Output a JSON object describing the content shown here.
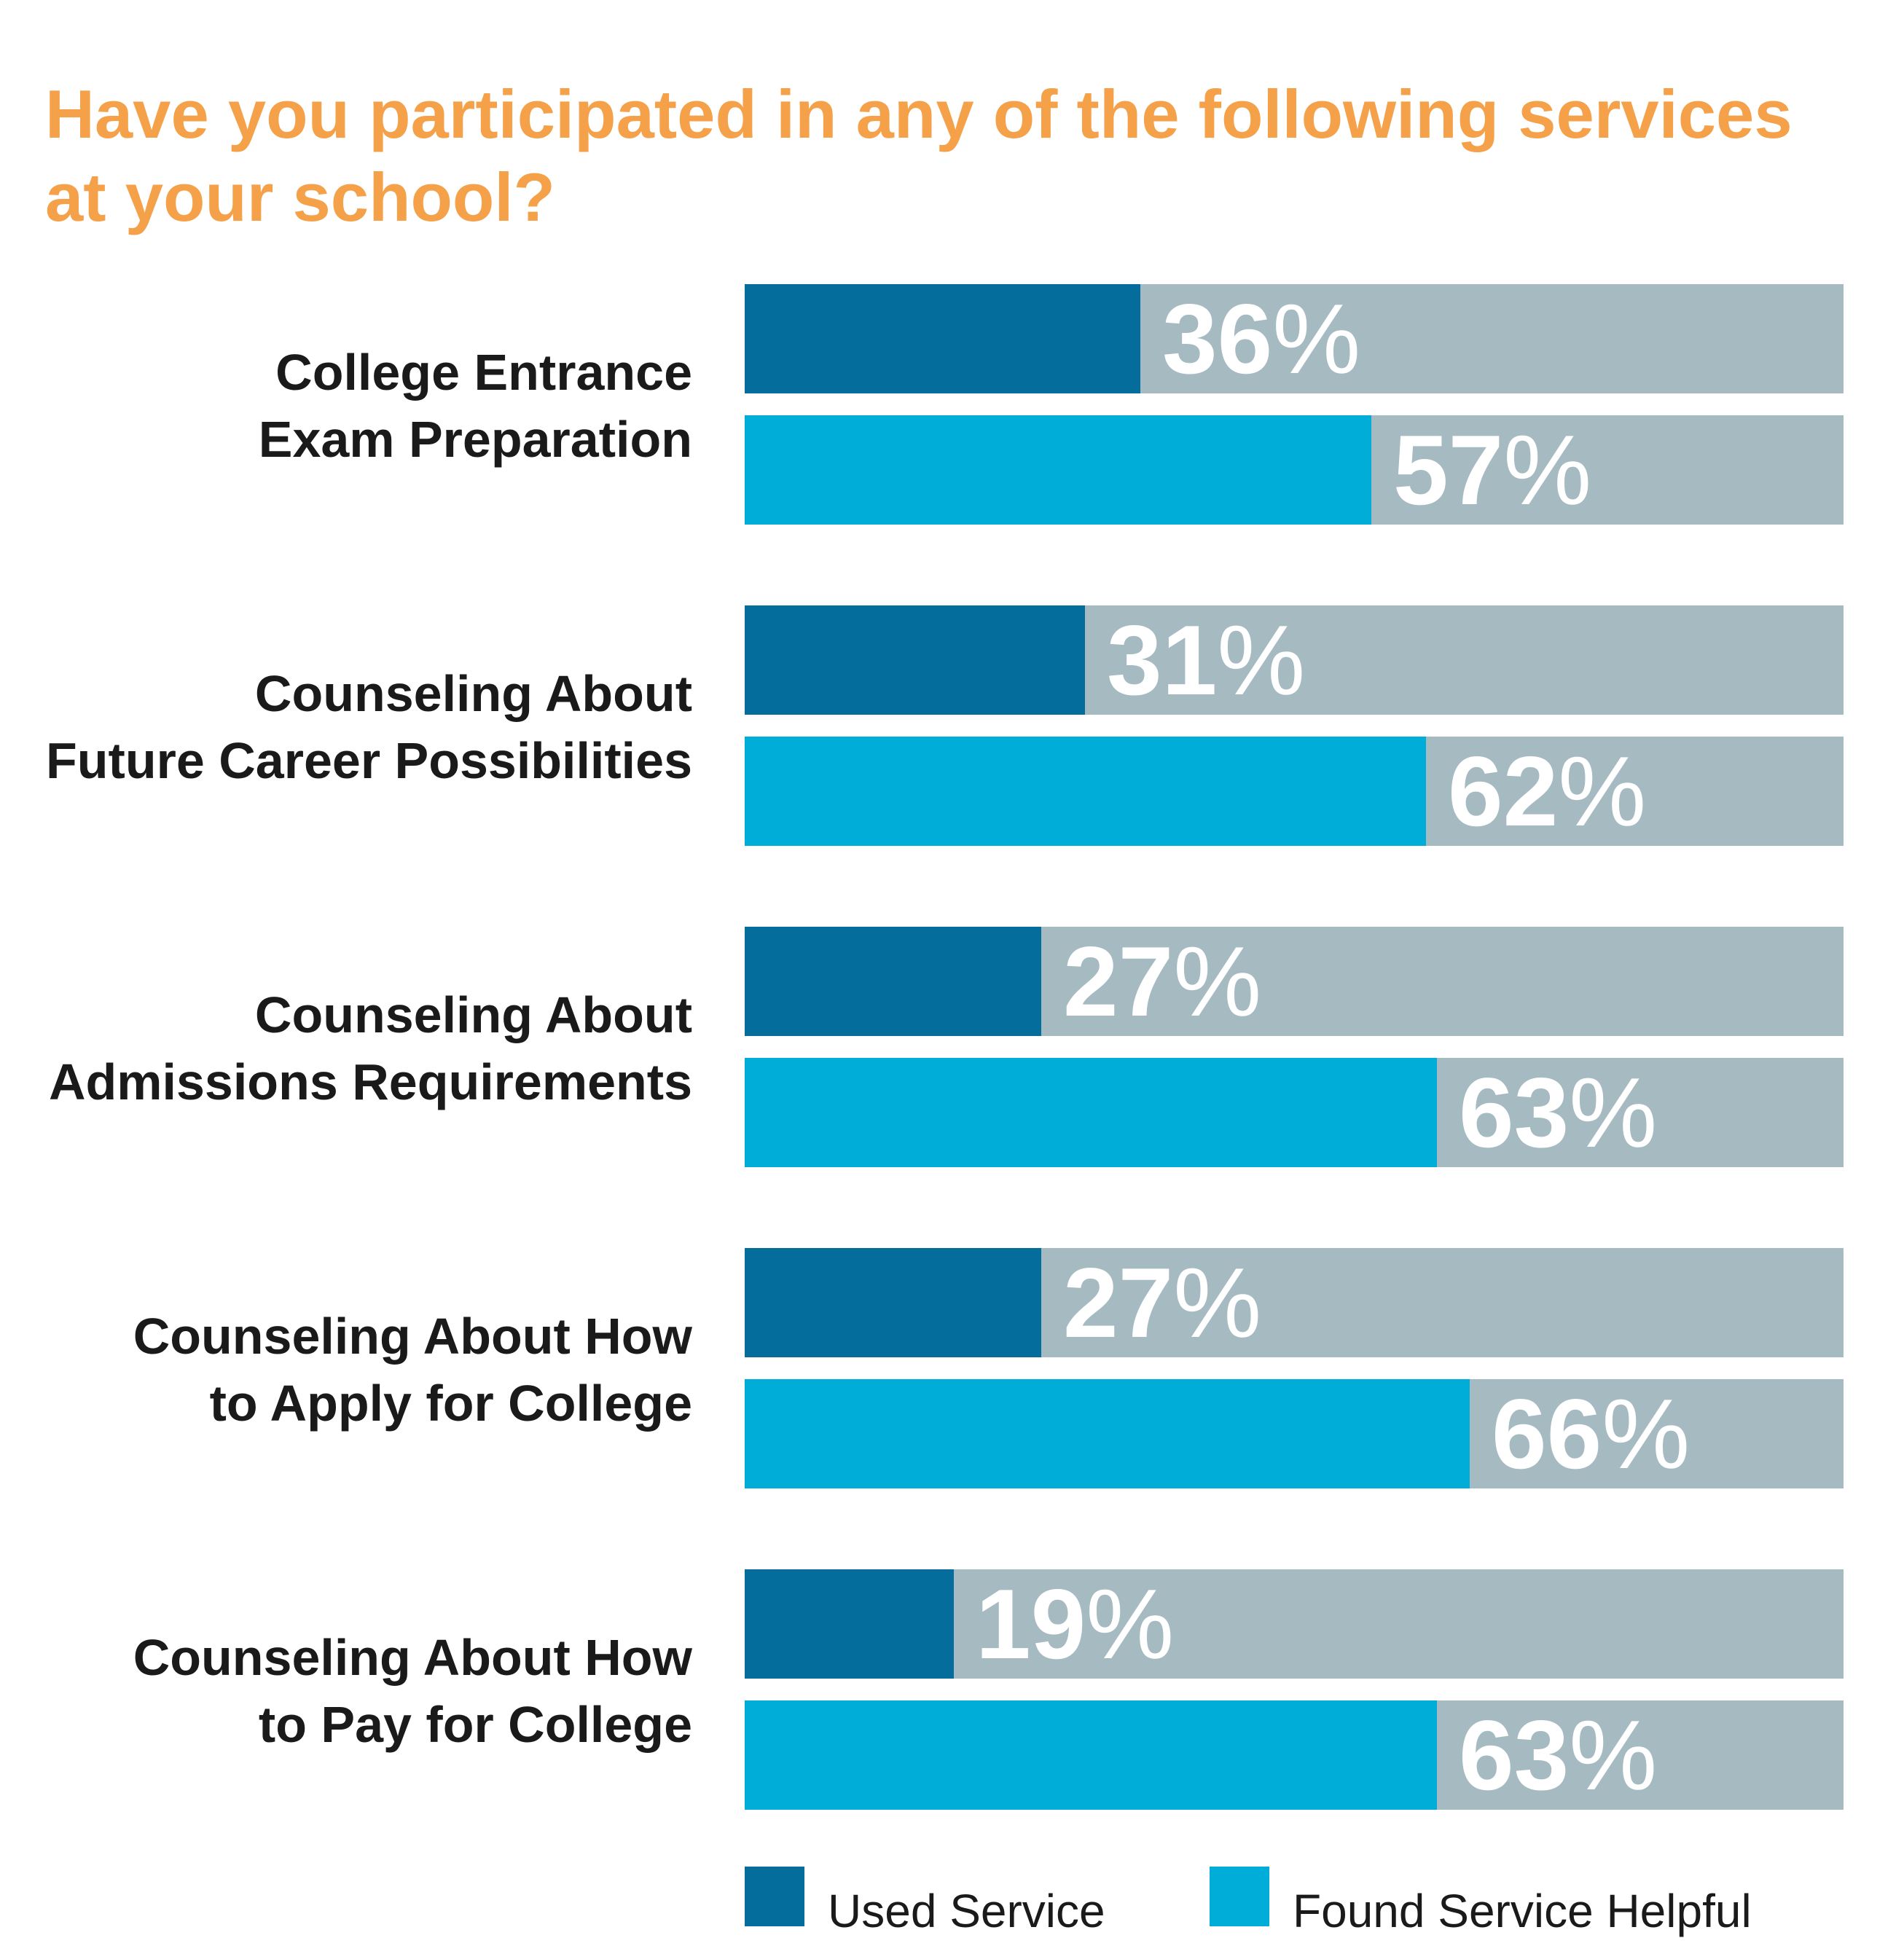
{
  "colors": {
    "title": "#f4a14a",
    "used": "#046d9b",
    "helpful": "#00acd8",
    "track": "#a6bac2",
    "value_text": "#ffffff",
    "label_text": "#1a1a1a"
  },
  "chart_data": {
    "type": "bar",
    "orientation": "horizontal",
    "title": "Have you participated in any of the following services at your school?",
    "xlabel": "",
    "ylabel": "",
    "xlim": [
      0,
      100
    ],
    "value_suffix": "%",
    "categories": [
      "College Entrance Exam Preparation",
      "Counseling About Future Career Possibilities",
      "Counseling About Admissions Requirements",
      "Counseling About How to Apply for College",
      "Counseling About How to Pay for College"
    ],
    "category_lines": [
      [
        "College Entrance",
        "Exam Preparation"
      ],
      [
        "Counseling About",
        "Future Career Possibilities"
      ],
      [
        "Counseling About",
        "Admissions Requirements"
      ],
      [
        "Counseling About How",
        "to Apply for College"
      ],
      [
        "Counseling About How",
        "to Pay for College"
      ]
    ],
    "series": [
      {
        "name": "Used Service",
        "key": "used",
        "values": [
          36,
          31,
          27,
          27,
          19
        ]
      },
      {
        "name": "Found Service Helpful",
        "key": "helpful",
        "values": [
          57,
          62,
          63,
          66,
          63
        ]
      }
    ],
    "legend_position": "bottom"
  }
}
